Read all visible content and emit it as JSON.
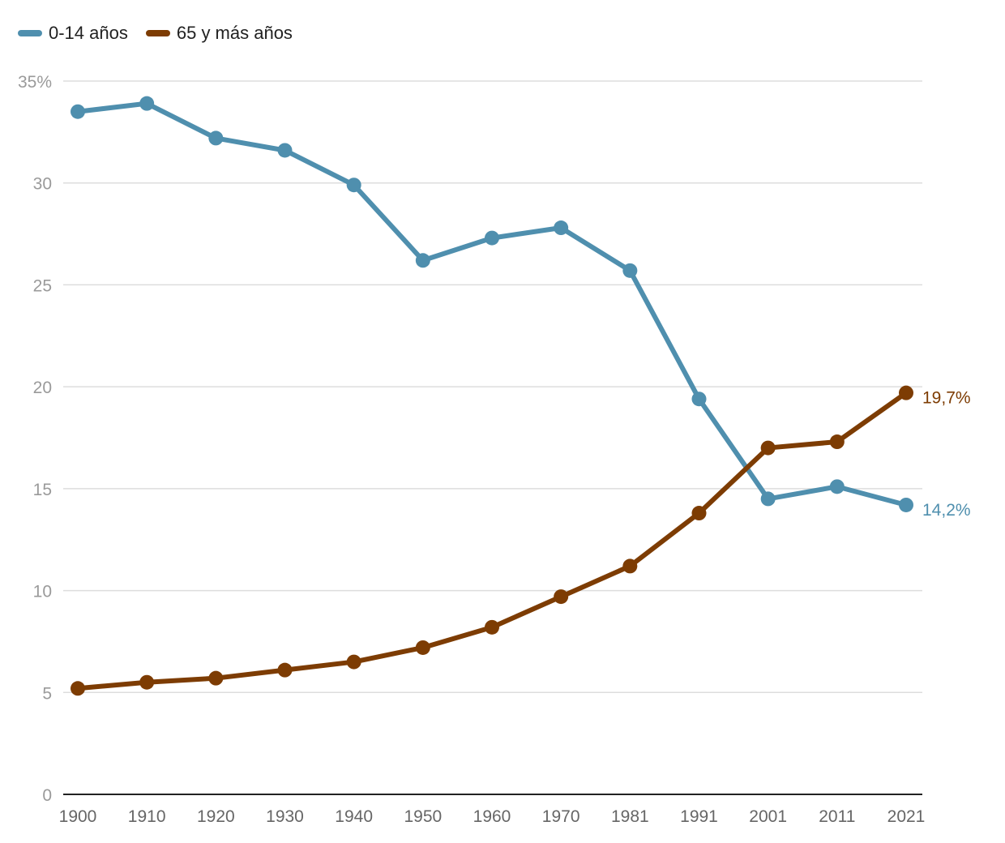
{
  "chart_data": {
    "type": "line",
    "categories": [
      "1900",
      "1910",
      "1920",
      "1930",
      "1940",
      "1950",
      "1960",
      "1970",
      "1981",
      "1991",
      "2001",
      "2011",
      "2021"
    ],
    "series": [
      {
        "name": "0-14 años",
        "color": "#4f8fae",
        "values": [
          33.5,
          33.9,
          32.2,
          31.6,
          29.9,
          26.2,
          27.3,
          27.8,
          25.7,
          19.4,
          14.5,
          15.1,
          14.2
        ],
        "end_label": "14,2%"
      },
      {
        "name": "65 y más años",
        "color": "#7d3c03",
        "values": [
          5.2,
          5.5,
          5.7,
          6.1,
          6.5,
          7.2,
          8.2,
          9.7,
          11.2,
          13.8,
          17.0,
          17.3,
          19.7
        ],
        "end_label": "19,7%"
      }
    ],
    "y_ticks": [
      "0",
      "5",
      "10",
      "15",
      "20",
      "25",
      "30",
      "35%"
    ],
    "ylim": [
      0,
      35
    ],
    "grid": true,
    "legend_position": "top-left"
  }
}
